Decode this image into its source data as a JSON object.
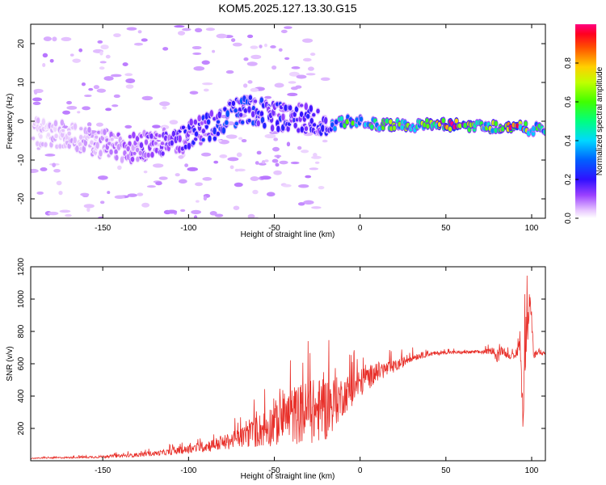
{
  "title": "KOM5.2025.127.13.30.G15",
  "chart_data": [
    {
      "type": "heatmap",
      "xlabel": "Height of straight line (km)",
      "ylabel": "Frequency (Hz)",
      "xlim": [
        -192,
        108
      ],
      "ylim": [
        -25,
        25
      ],
      "x_ticks": [
        -150,
        -100,
        -50,
        0,
        50,
        100
      ],
      "y_ticks": [
        -20,
        -10,
        0,
        10,
        20
      ],
      "colorbar": {
        "label": "Normalized spectral amplitude",
        "range": [
          0,
          1
        ],
        "ticks": [
          0.0,
          0.2,
          0.4,
          0.6,
          0.8
        ]
      },
      "ridge": {
        "x": [
          -190,
          -170,
          -150,
          -130,
          -110,
          -95,
          -85,
          -75,
          -65,
          -55,
          -45,
          -35,
          -28,
          -20,
          -15,
          -10,
          -5,
          0,
          10,
          20,
          30,
          40,
          50,
          60,
          70,
          80,
          90,
          100,
          108
        ],
        "freq": [
          -3,
          -4,
          -6,
          -7,
          -5,
          -3,
          -1,
          2,
          3,
          2,
          1,
          1,
          0,
          -2,
          -1,
          0,
          0,
          0,
          -1,
          -1,
          -1,
          -1,
          -1,
          -1,
          -1.2,
          -1.4,
          -1.5,
          -2,
          -2
        ],
        "amplitude": [
          0.05,
          0.06,
          0.08,
          0.12,
          0.15,
          0.2,
          0.22,
          0.28,
          0.25,
          0.22,
          0.2,
          0.2,
          0.18,
          0.22,
          0.35,
          0.5,
          0.55,
          0.5,
          0.55,
          0.6,
          0.62,
          0.6,
          0.95,
          0.85,
          0.6,
          0.62,
          0.9,
          0.55,
          0.5
        ]
      }
    },
    {
      "type": "line",
      "xlabel": "Height of straight line (km)",
      "ylabel": "SNR (v/v)",
      "xlim": [
        -192,
        108
      ],
      "ylim": [
        0,
        1200
      ],
      "x_ticks": [
        -150,
        -100,
        -50,
        0,
        50,
        100
      ],
      "y_ticks": [
        200,
        400,
        600,
        800,
        1000,
        1200
      ],
      "color": "#e8302a",
      "series": [
        {
          "x": [
            -192,
            -180,
            -170,
            -160,
            -150,
            -140,
            -130,
            -120,
            -110,
            -100,
            -90,
            -80,
            -70,
            -60,
            -50,
            -40,
            -30,
            -20,
            -10,
            0,
            10,
            20,
            30,
            40,
            50,
            60,
            70,
            78,
            80,
            82,
            85,
            90,
            93,
            95,
            97,
            99,
            101,
            103,
            108
          ],
          "values": [
            15,
            18,
            20,
            22,
            25,
            30,
            35,
            45,
            55,
            70,
            90,
            110,
            140,
            180,
            230,
            280,
            300,
            320,
            400,
            480,
            550,
            580,
            640,
            660,
            670,
            670,
            672,
            680,
            620,
            690,
            660,
            640,
            720,
            300,
            900,
            1100,
            650,
            660,
            665
          ],
          "noise": [
            3,
            4,
            5,
            6,
            8,
            10,
            12,
            15,
            20,
            25,
            35,
            45,
            60,
            100,
            140,
            180,
            200,
            200,
            120,
            90,
            60,
            40,
            25,
            15,
            10,
            10,
            12,
            20,
            40,
            30,
            20,
            20,
            60,
            120,
            250,
            200,
            30,
            15,
            10
          ]
        }
      ]
    }
  ]
}
